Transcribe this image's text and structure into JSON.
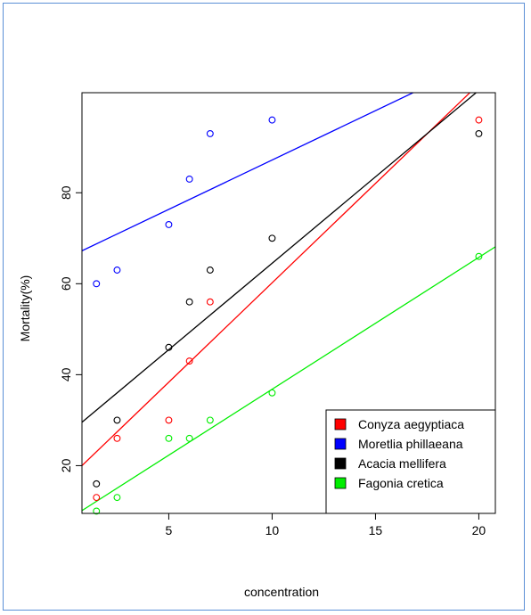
{
  "chart_data": {
    "type": "scatter",
    "title": "",
    "xlabel": "concentration",
    "ylabel": "Mortality(%)",
    "xlim": [
      0.8,
      20.8
    ],
    "ylim": [
      9.5,
      102
    ],
    "x_ticks": [
      5,
      10,
      15,
      20
    ],
    "y_ticks": [
      20,
      40,
      60,
      80
    ],
    "grid": false,
    "legend_position": "bottom-right",
    "series": [
      {
        "name": "Conyza aegyptiaca",
        "color": "#ff0000",
        "points": [
          [
            1.5,
            13
          ],
          [
            2.5,
            26
          ],
          [
            5,
            30
          ],
          [
            6,
            43
          ],
          [
            7,
            56
          ],
          [
            20,
            96
          ]
        ],
        "fit": {
          "intercept": 16.5,
          "slope": 4.37
        }
      },
      {
        "name": "Moretlia phillaeana",
        "color": "#0000ff",
        "points": [
          [
            1.5,
            60
          ],
          [
            2.5,
            63
          ],
          [
            5,
            73
          ],
          [
            6,
            83
          ],
          [
            7,
            93
          ],
          [
            10,
            96
          ]
        ],
        "fit": {
          "intercept": 65.5,
          "slope": 2.17
        }
      },
      {
        "name": "Acacia mellifera",
        "color": "#000000",
        "points": [
          [
            1.5,
            16
          ],
          [
            2.5,
            30
          ],
          [
            5,
            46
          ],
          [
            6,
            56
          ],
          [
            7,
            63
          ],
          [
            10,
            70
          ],
          [
            20,
            93
          ]
        ],
        "fit": {
          "intercept": 26.5,
          "slope": 3.8
        }
      },
      {
        "name": "Fagonia cretica",
        "color": "#00ee00",
        "points": [
          [
            1.5,
            10
          ],
          [
            2.5,
            13
          ],
          [
            5,
            26
          ],
          [
            6,
            26
          ],
          [
            7,
            30
          ],
          [
            10,
            36
          ],
          [
            20,
            66
          ]
        ],
        "fit": {
          "intercept": 7.8,
          "slope": 2.9
        }
      }
    ]
  }
}
